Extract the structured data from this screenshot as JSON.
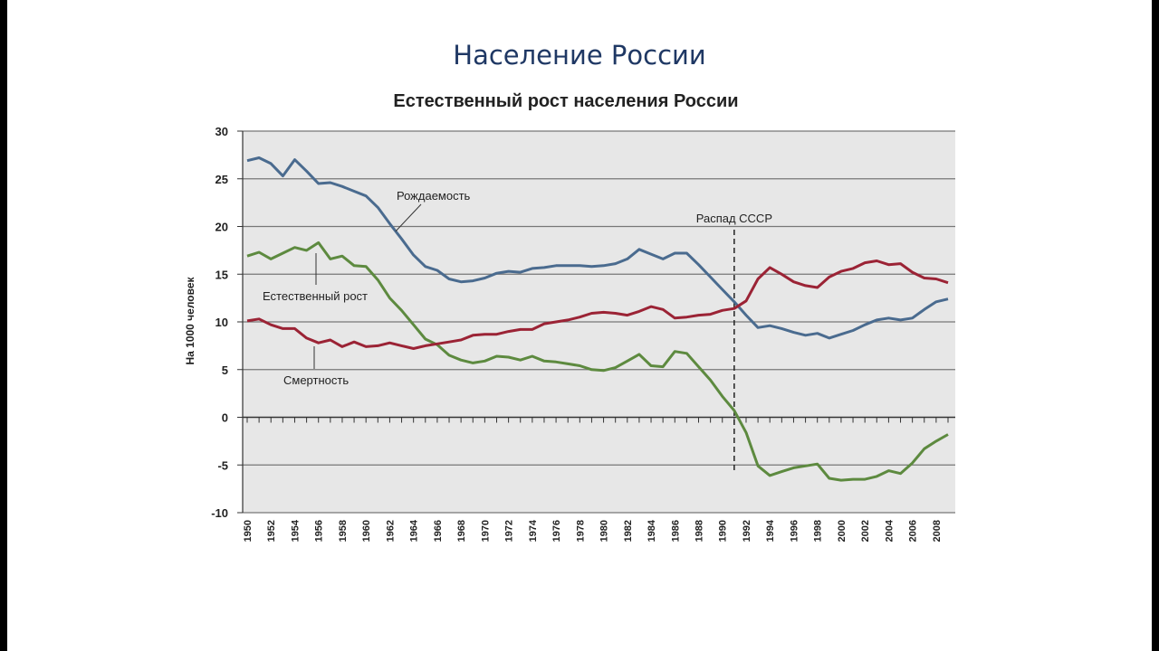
{
  "slide": {
    "title": "Население России"
  },
  "chart_data": {
    "type": "line",
    "title": "Естественный рост населения России",
    "ylabel": "На 1000 человек",
    "xlabel": "",
    "ylim": [
      -10,
      30
    ],
    "yticks": [
      30,
      25,
      20,
      15,
      10,
      5,
      0,
      -5,
      -10
    ],
    "xlim": [
      1950,
      2009
    ],
    "xtick_labels": [
      "1950",
      "1952",
      "1954",
      "1956",
      "1958",
      "1960",
      "1962",
      "1964",
      "1966",
      "1968",
      "1970",
      "1972",
      "1974",
      "1976",
      "1978",
      "1980",
      "1982",
      "1984",
      "1986",
      "1988",
      "1990",
      "1992",
      "1994",
      "1996",
      "1998",
      "2000",
      "2002",
      "2004",
      "2006",
      "2008"
    ],
    "grid": true,
    "series": [
      {
        "name": "Рождаемость",
        "color": "#4a6b8f",
        "x": [
          1950,
          1951,
          1952,
          1953,
          1954,
          1955,
          1956,
          1957,
          1958,
          1959,
          1960,
          1961,
          1962,
          1963,
          1964,
          1965,
          1966,
          1967,
          1968,
          1969,
          1970,
          1971,
          1972,
          1973,
          1974,
          1975,
          1976,
          1977,
          1978,
          1979,
          1980,
          1981,
          1982,
          1983,
          1984,
          1985,
          1986,
          1987,
          1988,
          1989,
          1990,
          1991,
          1992,
          1993,
          1994,
          1995,
          1996,
          1997,
          1998,
          1999,
          2000,
          2001,
          2002,
          2003,
          2004,
          2005,
          2006,
          2007,
          2008,
          2009
        ],
        "values": [
          26.9,
          27.2,
          26.6,
          25.3,
          27.0,
          25.8,
          24.5,
          24.6,
          24.2,
          23.7,
          23.2,
          22.0,
          20.3,
          18.7,
          17.0,
          15.8,
          15.4,
          14.5,
          14.2,
          14.3,
          14.6,
          15.1,
          15.3,
          15.2,
          15.6,
          15.7,
          15.9,
          15.9,
          15.9,
          15.8,
          15.9,
          16.1,
          16.6,
          17.6,
          17.1,
          16.6,
          17.2,
          17.2,
          16.0,
          14.7,
          13.4,
          12.1,
          10.7,
          9.4,
          9.6,
          9.3,
          8.9,
          8.6,
          8.8,
          8.3,
          8.7,
          9.1,
          9.7,
          10.2,
          10.4,
          10.2,
          10.4,
          11.3,
          12.1,
          12.4
        ]
      },
      {
        "name": "Естественный рост",
        "color": "#5d8a3f",
        "x": [
          1950,
          1951,
          1952,
          1953,
          1954,
          1955,
          1956,
          1957,
          1958,
          1959,
          1960,
          1961,
          1962,
          1963,
          1964,
          1965,
          1966,
          1967,
          1968,
          1969,
          1970,
          1971,
          1972,
          1973,
          1974,
          1975,
          1976,
          1977,
          1978,
          1979,
          1980,
          1981,
          1982,
          1983,
          1984,
          1985,
          1986,
          1987,
          1988,
          1989,
          1990,
          1991,
          1992,
          1993,
          1994,
          1995,
          1996,
          1997,
          1998,
          1999,
          2000,
          2001,
          2002,
          2003,
          2004,
          2005,
          2006,
          2007,
          2008,
          2009
        ],
        "values": [
          16.9,
          17.3,
          16.6,
          17.2,
          17.8,
          17.5,
          18.3,
          16.6,
          16.9,
          15.9,
          15.8,
          14.4,
          12.5,
          11.2,
          9.7,
          8.2,
          7.6,
          6.5,
          6.0,
          5.7,
          5.9,
          6.4,
          6.3,
          6.0,
          6.4,
          5.9,
          5.8,
          5.6,
          5.4,
          5.0,
          4.9,
          5.2,
          5.9,
          6.6,
          5.4,
          5.3,
          6.9,
          6.7,
          5.3,
          3.9,
          2.2,
          0.7,
          -1.6,
          -5.1,
          -6.1,
          -5.7,
          -5.3,
          -5.1,
          -4.9,
          -6.4,
          -6.6,
          -6.5,
          -6.5,
          -6.2,
          -5.6,
          -5.9,
          -4.8,
          -3.3,
          -2.5,
          -1.8
        ]
      },
      {
        "name": "Смертность",
        "color": "#9b2335",
        "x": [
          1950,
          1951,
          1952,
          1953,
          1954,
          1955,
          1956,
          1957,
          1958,
          1959,
          1960,
          1961,
          1962,
          1963,
          1964,
          1965,
          1966,
          1967,
          1968,
          1969,
          1970,
          1971,
          1972,
          1973,
          1974,
          1975,
          1976,
          1977,
          1978,
          1979,
          1980,
          1981,
          1982,
          1983,
          1984,
          1985,
          1986,
          1987,
          1988,
          1989,
          1990,
          1991,
          1992,
          1993,
          1994,
          1995,
          1996,
          1997,
          1998,
          1999,
          2000,
          2001,
          2002,
          2003,
          2004,
          2005,
          2006,
          2007,
          2008,
          2009
        ],
        "values": [
          10.1,
          10.3,
          9.7,
          9.3,
          9.3,
          8.3,
          7.8,
          8.1,
          7.4,
          7.9,
          7.4,
          7.5,
          7.8,
          7.5,
          7.2,
          7.5,
          7.7,
          7.9,
          8.1,
          8.6,
          8.7,
          8.7,
          9.0,
          9.2,
          9.2,
          9.8,
          10.0,
          10.2,
          10.5,
          10.9,
          11.0,
          10.9,
          10.7,
          11.1,
          11.6,
          11.3,
          10.4,
          10.5,
          10.7,
          10.8,
          11.2,
          11.4,
          12.2,
          14.5,
          15.7,
          15.0,
          14.2,
          13.8,
          13.6,
          14.7,
          15.3,
          15.6,
          16.2,
          16.4,
          16.0,
          16.1,
          15.2,
          14.6,
          14.5,
          14.1
        ]
      }
    ],
    "annotations": [
      {
        "text": "Рождаемость",
        "year": 1962.5,
        "value": 19.5
      },
      {
        "text": "Естественный рост",
        "year": 1956,
        "value": 15.5
      },
      {
        "text": "Смертность",
        "year": 1956,
        "value": 4.5
      },
      {
        "text": "Распад СССР",
        "year": 1991
      }
    ]
  }
}
